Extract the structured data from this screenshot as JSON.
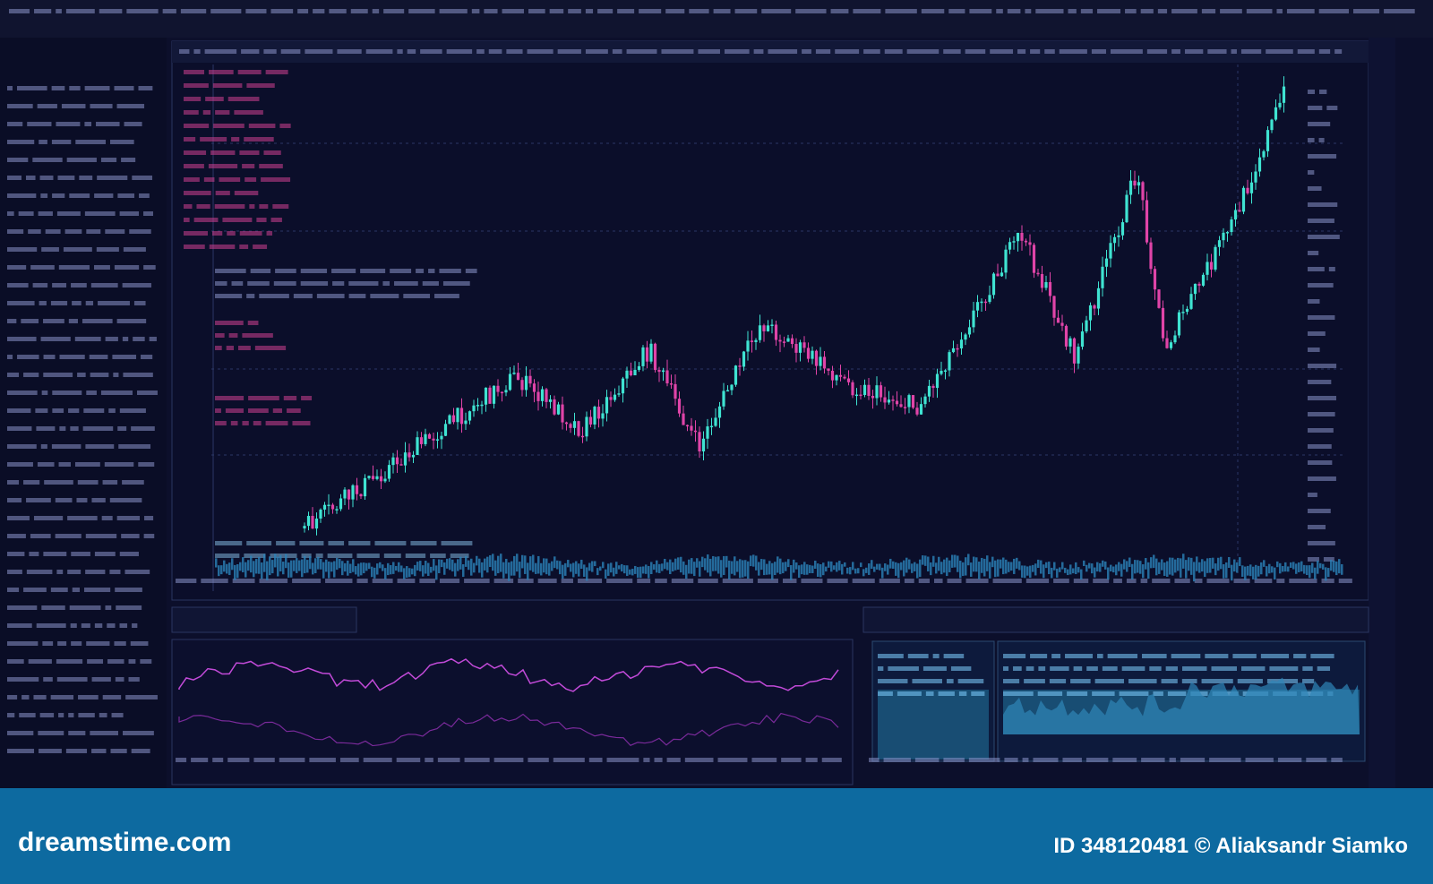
{
  "watermark": {
    "site": "dreamstime.com",
    "credit": "ID 348120481 © Aliaksandr Siamko"
  }
}
